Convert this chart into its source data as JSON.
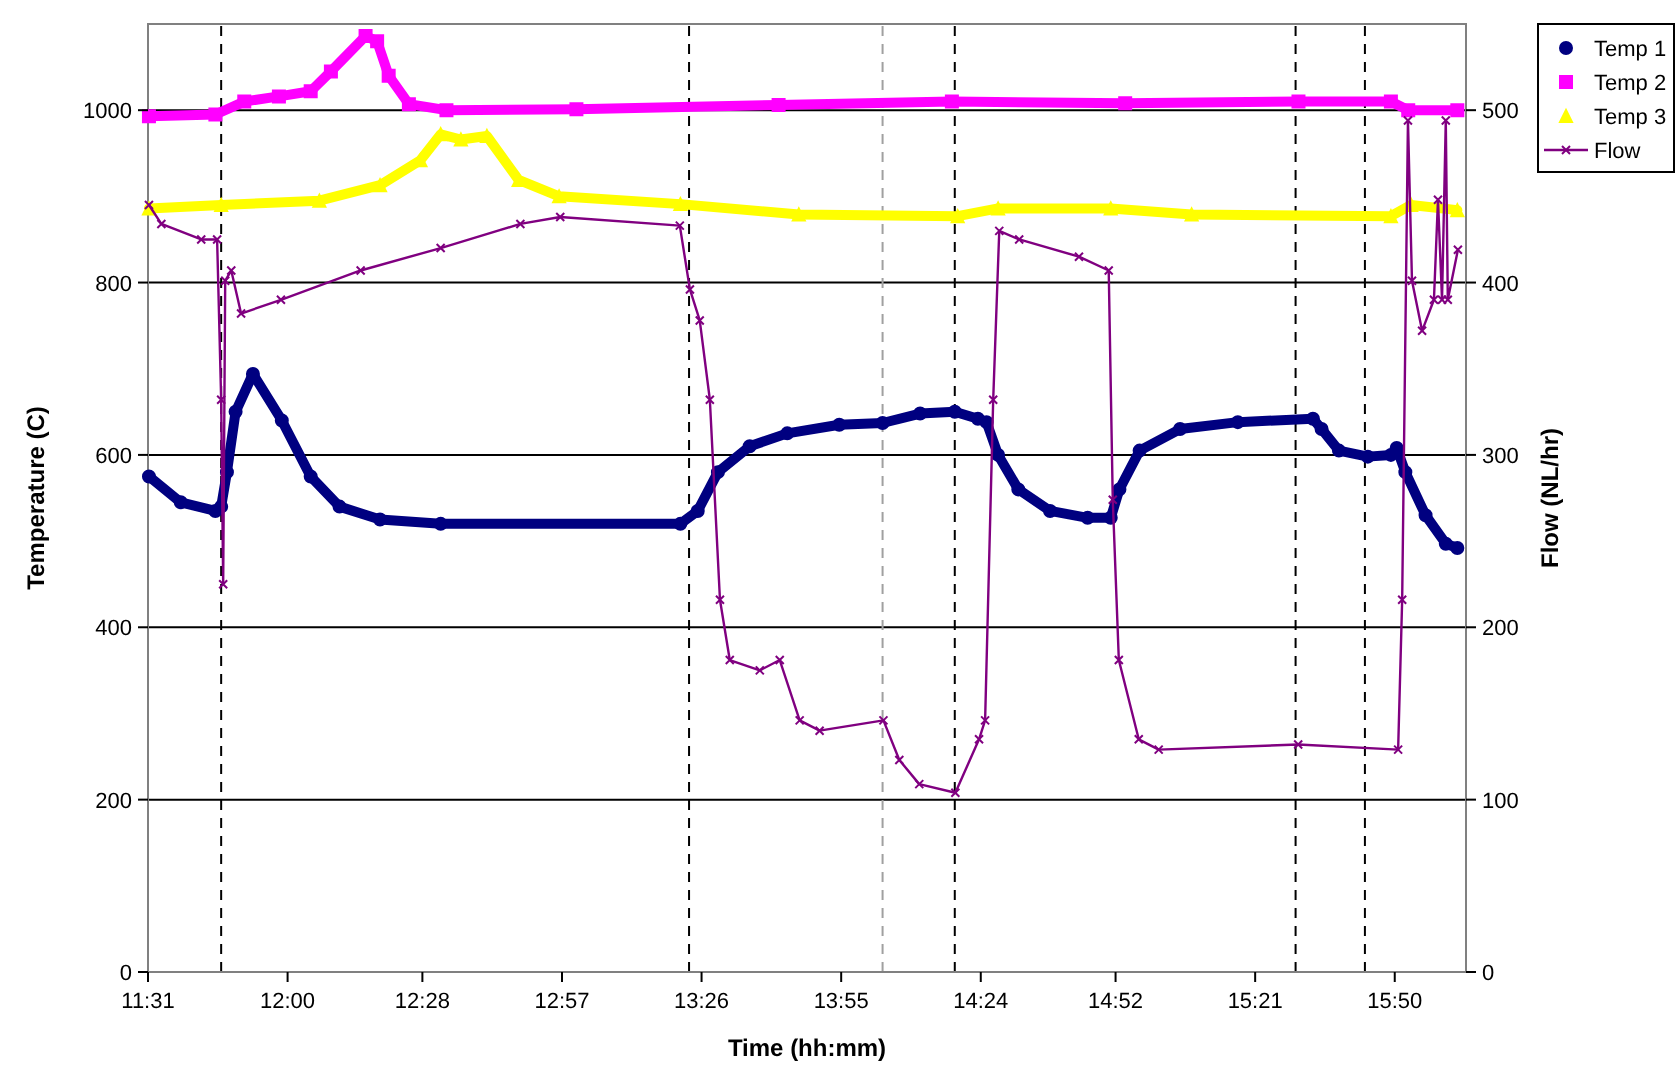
{
  "chart_data": {
    "type": "line",
    "xlabel": "Time (hh:mm)",
    "ylabel": "Temperature (C)",
    "y2label": "Flow (NL/hr)",
    "xlim": [
      11.5167,
      16.08
    ],
    "xticks": [
      {
        "value": 11.5167,
        "label": "11:31"
      },
      {
        "value": 12.0,
        "label": "12:00"
      },
      {
        "value": 12.4667,
        "label": "12:28"
      },
      {
        "value": 12.95,
        "label": "12:57"
      },
      {
        "value": 13.4333,
        "label": "13:26"
      },
      {
        "value": 13.9167,
        "label": "13:55"
      },
      {
        "value": 14.4,
        "label": "14:24"
      },
      {
        "value": 14.8667,
        "label": "14:52"
      },
      {
        "value": 15.35,
        "label": "15:21"
      },
      {
        "value": 15.8333,
        "label": "15:50"
      }
    ],
    "ylim": [
      0,
      1100
    ],
    "yticks": [
      0,
      200,
      400,
      600,
      800,
      1000
    ],
    "y2lim": [
      0,
      550
    ],
    "y2ticks": [
      0,
      100,
      200,
      300,
      400,
      500
    ],
    "grid": "y",
    "legend": "right",
    "ref_lines": [
      {
        "axis": "x",
        "value": 11.77,
        "color": "#000000",
        "line_style": "dashed"
      },
      {
        "axis": "x",
        "value": 13.39,
        "color": "#000000",
        "line_style": "dashed"
      },
      {
        "axis": "x",
        "value": 14.06,
        "color": "#a0a0a0",
        "line_style": "dashed"
      },
      {
        "axis": "x",
        "value": 14.31,
        "color": "#000000",
        "line_style": "dashed"
      },
      {
        "axis": "x",
        "value": 15.49,
        "color": "#000000",
        "line_style": "dashed"
      },
      {
        "axis": "x",
        "value": 15.73,
        "color": "#000000",
        "line_style": "dashed"
      }
    ],
    "series": [
      {
        "name": "Temp 1",
        "color": "#000080",
        "marker": "circle",
        "x": [
          11.52,
          11.63,
          11.75,
          11.77,
          11.79,
          11.82,
          11.88,
          11.98,
          12.08,
          12.18,
          12.32,
          12.53,
          13.36,
          13.42,
          13.49,
          13.6,
          13.73,
          13.91,
          14.06,
          14.19,
          14.31,
          14.39,
          14.42,
          14.46,
          14.53,
          14.64,
          14.77,
          14.85,
          14.88,
          14.95,
          15.09,
          15.29,
          15.55,
          15.58,
          15.64,
          15.74,
          15.82,
          15.84,
          15.87,
          15.94,
          16.01,
          16.05
        ],
        "values": [
          575,
          545,
          535,
          540,
          580,
          650,
          694,
          640,
          575,
          540,
          525,
          520,
          520,
          535,
          580,
          610,
          625,
          635,
          637,
          648,
          650,
          642,
          638,
          600,
          560,
          535,
          527,
          527,
          560,
          605,
          630,
          638,
          642,
          630,
          605,
          598,
          600,
          608,
          580,
          530,
          497,
          492
        ]
      },
      {
        "name": "Temp 2",
        "color": "#ff00ff",
        "marker": "square",
        "x": [
          11.52,
          11.75,
          11.85,
          11.97,
          12.08,
          12.15,
          12.27,
          12.31,
          12.35,
          12.42,
          12.55,
          13.0,
          13.7,
          14.3,
          14.9,
          15.5,
          15.82,
          15.88,
          16.05
        ],
        "values": [
          993,
          995,
          1010,
          1016,
          1022,
          1045,
          1086,
          1080,
          1040,
          1007,
          1000,
          1001,
          1006,
          1010,
          1008,
          1010,
          1010,
          1000,
          1000
        ]
      },
      {
        "name": "Temp 3",
        "color": "#ffff00",
        "marker": "triangle",
        "x": [
          11.52,
          11.77,
          12.11,
          12.32,
          12.46,
          12.53,
          12.6,
          12.69,
          12.8,
          12.94,
          13.36,
          13.77,
          14.32,
          14.46,
          14.85,
          15.13,
          15.82,
          15.89,
          16.05
        ],
        "values": [
          886,
          890,
          895,
          913,
          942,
          972,
          966,
          970,
          919,
          900,
          891,
          879,
          877,
          886,
          886,
          879,
          877,
          890,
          884
        ]
      },
      {
        "name": "Flow",
        "color": "#800080",
        "marker": "cross",
        "axis": "y2",
        "x": [
          11.52,
          11.563,
          11.701,
          11.756,
          11.77,
          11.777,
          11.784,
          11.805,
          11.839,
          11.977,
          12.253,
          12.53,
          12.806,
          12.944,
          13.358,
          13.393,
          13.427,
          13.462,
          13.497,
          13.531,
          13.635,
          13.704,
          13.773,
          13.842,
          14.063,
          14.118,
          14.187,
          14.312,
          14.394,
          14.415,
          14.443,
          14.464,
          14.533,
          14.74,
          14.843,
          14.857,
          14.878,
          14.947,
          15.016,
          15.499,
          15.845,
          15.859,
          15.879,
          15.893,
          15.928,
          15.969,
          15.983,
          15.997,
          16.01,
          16.017,
          16.052
        ],
        "values": [
          445,
          434,
          425,
          425,
          332,
          225,
          401,
          407,
          382,
          390,
          407,
          420,
          434,
          438,
          433,
          396,
          378,
          332,
          216,
          181,
          175,
          181,
          146,
          140,
          146,
          123,
          109,
          104,
          135,
          146,
          332,
          430,
          425,
          415,
          407,
          274,
          181,
          135,
          129,
          132,
          129,
          216,
          494,
          401,
          372,
          390,
          448,
          390,
          494,
          390,
          419
        ]
      }
    ]
  }
}
